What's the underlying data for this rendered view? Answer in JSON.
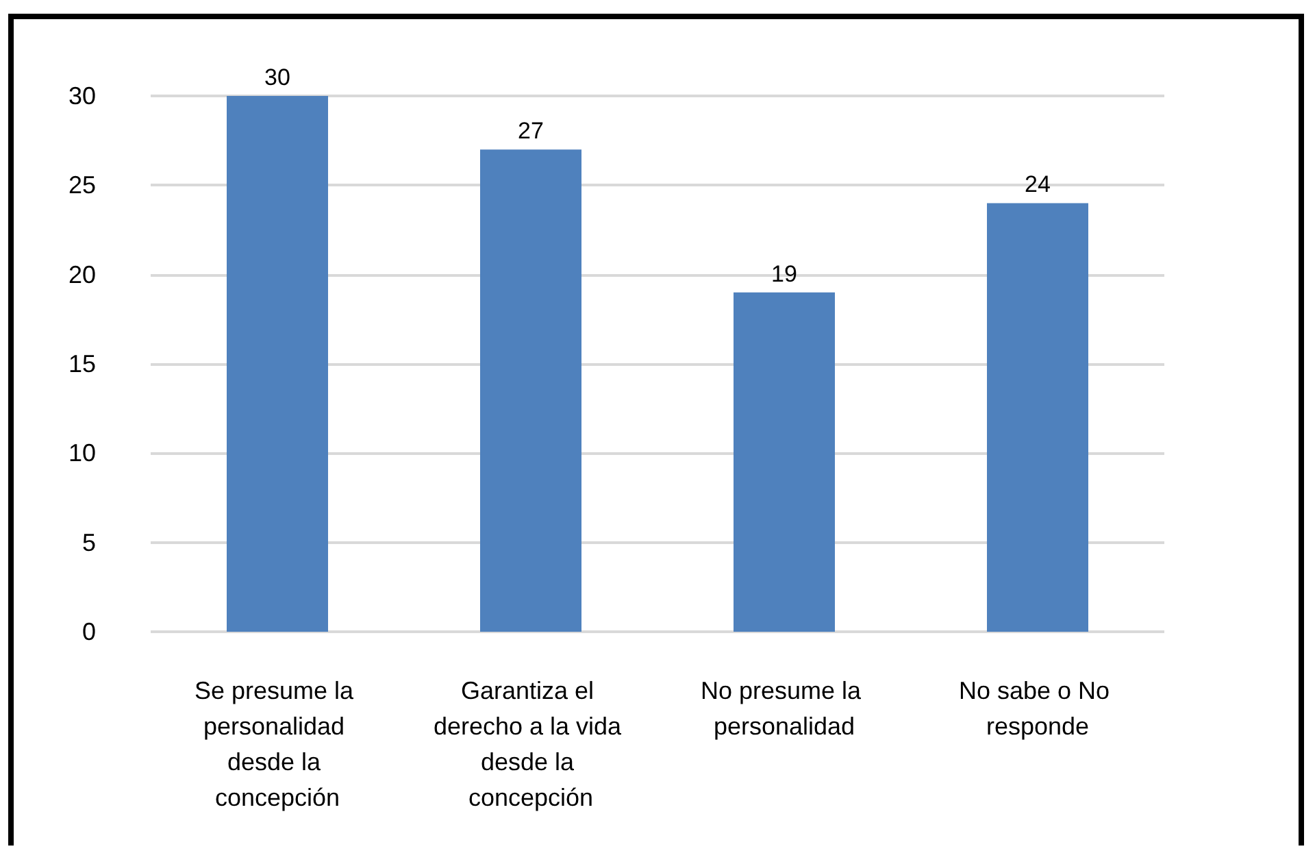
{
  "chart_data": {
    "type": "bar",
    "categories": [
      "Se presume la personalidad desde la concepción",
      "Garantiza el derecho a la vida desde la concepción",
      "No presume la personalidad",
      "No sabe o No responde"
    ],
    "values": [
      30,
      27,
      19,
      24
    ],
    "color": "#4f81bd",
    "ylim": [
      0,
      30
    ],
    "yticks": [
      0,
      5,
      10,
      15,
      20,
      25,
      30
    ],
    "grid": "y",
    "data_labels": true
  }
}
